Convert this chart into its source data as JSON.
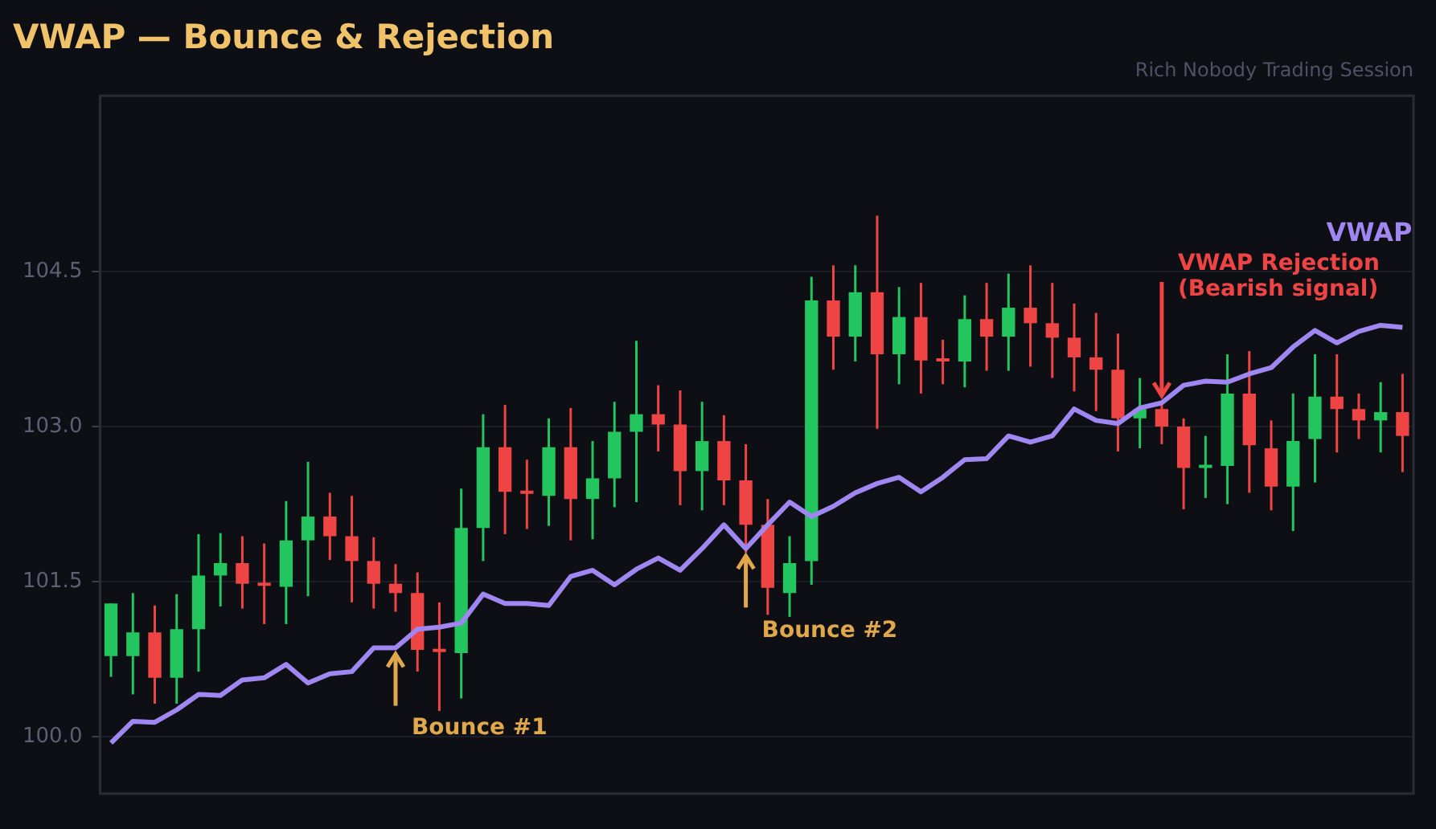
{
  "chart_data": {
    "type": "candlestick",
    "title": "VWAP — Bounce & Rejection",
    "subtitle": "Rich Nobody Trading Session",
    "categories": [
      null,
      null,
      null,
      null,
      null,
      null,
      null,
      null,
      null,
      null,
      null,
      null,
      null,
      null,
      null,
      null,
      null,
      null,
      null,
      null,
      null,
      null,
      null,
      null,
      null,
      null,
      null,
      null,
      null,
      null,
      null,
      null,
      null,
      null,
      null,
      null,
      null,
      null,
      null,
      null,
      null,
      null,
      null,
      null,
      null,
      null,
      null,
      null,
      null,
      null,
      null,
      null,
      null,
      null,
      null,
      null,
      null,
      null,
      null,
      null
    ],
    "ohlc": [
      [
        100.78,
        101.29,
        100.58,
        101.29
      ],
      [
        100.78,
        101.39,
        100.41,
        101.01
      ],
      [
        101.01,
        101.27,
        100.32,
        100.57
      ],
      [
        100.57,
        101.38,
        100.32,
        101.04
      ],
      [
        101.04,
        101.96,
        100.63,
        101.56
      ],
      [
        101.56,
        101.97,
        101.26,
        101.68
      ],
      [
        101.68,
        101.94,
        101.24,
        101.48
      ],
      [
        101.48,
        101.87,
        101.09,
        101.46
      ],
      [
        101.45,
        102.28,
        101.09,
        101.9
      ],
      [
        101.9,
        102.66,
        101.36,
        102.13
      ],
      [
        102.13,
        102.36,
        101.71,
        101.94
      ],
      [
        101.94,
        102.33,
        101.3,
        101.7
      ],
      [
        101.7,
        101.93,
        101.24,
        101.48
      ],
      [
        101.48,
        101.67,
        101.21,
        101.39
      ],
      [
        101.39,
        101.59,
        100.63,
        100.84
      ],
      [
        100.84,
        101.3,
        100.25,
        100.82
      ],
      [
        100.81,
        102.4,
        100.37,
        102.02
      ],
      [
        102.02,
        103.12,
        101.7,
        102.8
      ],
      [
        102.8,
        103.21,
        101.96,
        102.37
      ],
      [
        102.37,
        102.68,
        102.01,
        102.35
      ],
      [
        102.33,
        103.08,
        102.04,
        102.8
      ],
      [
        102.8,
        103.18,
        101.9,
        102.3
      ],
      [
        102.3,
        102.86,
        101.91,
        102.5
      ],
      [
        102.5,
        103.24,
        102.22,
        102.95
      ],
      [
        102.95,
        103.83,
        102.27,
        103.12
      ],
      [
        103.12,
        103.4,
        102.76,
        103.02
      ],
      [
        103.02,
        103.35,
        102.24,
        102.57
      ],
      [
        102.57,
        103.24,
        102.19,
        102.86
      ],
      [
        102.86,
        103.11,
        102.24,
        102.48
      ],
      [
        102.48,
        102.83,
        101.78,
        102.05
      ],
      [
        102.05,
        102.3,
        101.18,
        101.44
      ],
      [
        101.39,
        101.94,
        101.16,
        101.68
      ],
      [
        101.7,
        104.45,
        101.47,
        104.22
      ],
      [
        104.22,
        104.56,
        103.55,
        103.87
      ],
      [
        103.87,
        104.56,
        103.63,
        104.3
      ],
      [
        104.3,
        105.04,
        102.98,
        103.7
      ],
      [
        103.7,
        104.35,
        103.41,
        104.06
      ],
      [
        104.06,
        104.39,
        103.32,
        103.64
      ],
      [
        103.64,
        103.84,
        103.41,
        103.63
      ],
      [
        103.63,
        104.27,
        103.38,
        104.04
      ],
      [
        104.04,
        104.39,
        103.54,
        103.87
      ],
      [
        103.87,
        104.48,
        103.54,
        104.15
      ],
      [
        104.15,
        104.56,
        103.58,
        104
      ],
      [
        104,
        104.39,
        103.47,
        103.86
      ],
      [
        103.86,
        104.19,
        103.34,
        103.67
      ],
      [
        103.67,
        104.1,
        103.15,
        103.55
      ],
      [
        103.55,
        103.9,
        102.76,
        103.08
      ],
      [
        103.08,
        103.47,
        102.79,
        103.17
      ],
      [
        103.17,
        103.23,
        102.83,
        103
      ],
      [
        103,
        103.08,
        102.2,
        102.6
      ],
      [
        102.6,
        102.91,
        102.31,
        102.62
      ],
      [
        102.62,
        103.7,
        102.25,
        103.32
      ],
      [
        103.32,
        103.73,
        102.36,
        102.82
      ],
      [
        102.79,
        103.06,
        102.19,
        102.42
      ],
      [
        102.42,
        103.32,
        101.99,
        102.86
      ],
      [
        102.88,
        103.7,
        102.46,
        103.29
      ],
      [
        103.29,
        103.7,
        102.75,
        103.17
      ],
      [
        103.17,
        103.32,
        102.88,
        103.06
      ],
      [
        103.06,
        103.43,
        102.75,
        103.14
      ],
      [
        103.14,
        103.51,
        102.56,
        102.91
      ]
    ],
    "colors": [
      "#22c55e",
      "#22c55e",
      "#ef4444",
      "#22c55e",
      "#22c55e",
      "#22c55e",
      "#ef4444",
      "#ef4444",
      "#22c55e",
      "#22c55e",
      "#ef4444",
      "#ef4444",
      "#ef4444",
      "#ef4444",
      "#ef4444",
      "#ef4444",
      "#22c55e",
      "#22c55e",
      "#ef4444",
      "#ef4444",
      "#22c55e",
      "#ef4444",
      "#22c55e",
      "#22c55e",
      "#22c55e",
      "#ef4444",
      "#ef4444",
      "#22c55e",
      "#ef4444",
      "#ef4444",
      "#ef4444",
      "#22c55e",
      "#22c55e",
      "#ef4444",
      "#22c55e",
      "#ef4444",
      "#22c55e",
      "#ef4444",
      "#ef4444",
      "#22c55e",
      "#ef4444",
      "#22c55e",
      "#ef4444",
      "#ef4444",
      "#ef4444",
      "#ef4444",
      "#ef4444",
      "#22c55e",
      "#ef4444",
      "#ef4444",
      "#22c55e",
      "#22c55e",
      "#ef4444",
      "#ef4444",
      "#22c55e",
      "#22c55e",
      "#ef4444",
      "#ef4444",
      "#22c55e",
      "#ef4444"
    ],
    "series": [
      {
        "name": "VWAP",
        "type": "line",
        "color": "#9f86f0",
        "values": [
          99.94,
          100.15,
          100.14,
          100.26,
          100.41,
          100.4,
          100.55,
          100.57,
          100.7,
          100.52,
          100.61,
          100.63,
          100.86,
          100.86,
          101.04,
          101.06,
          101.1,
          101.38,
          101.29,
          101.29,
          101.27,
          101.55,
          101.61,
          101.47,
          101.62,
          101.73,
          101.61,
          101.82,
          102.05,
          101.82,
          102.05,
          102.27,
          102.13,
          102.23,
          102.36,
          102.45,
          102.51,
          102.37,
          102.51,
          102.68,
          102.69,
          102.91,
          102.85,
          102.91,
          103.17,
          103.06,
          103.03,
          103.18,
          103.23,
          103.4,
          103.44,
          103.43,
          103.51,
          103.57,
          103.77,
          103.93,
          103.81,
          103.92,
          103.98,
          103.96
        ]
      }
    ],
    "ylim": [
      99.45,
      106.2
    ],
    "yticks": [
      {
        "value": 100,
        "label": "100.0"
      },
      101.5,
      {
        "value": 103,
        "label": "103.0"
      },
      104.5
    ],
    "grid": "y",
    "legend": false,
    "tick_labels": "y",
    "annotations": [
      "Bounce #1",
      "Bounce #2",
      "VWAP Rejection\n(Bearish signal)"
    ]
  }
}
